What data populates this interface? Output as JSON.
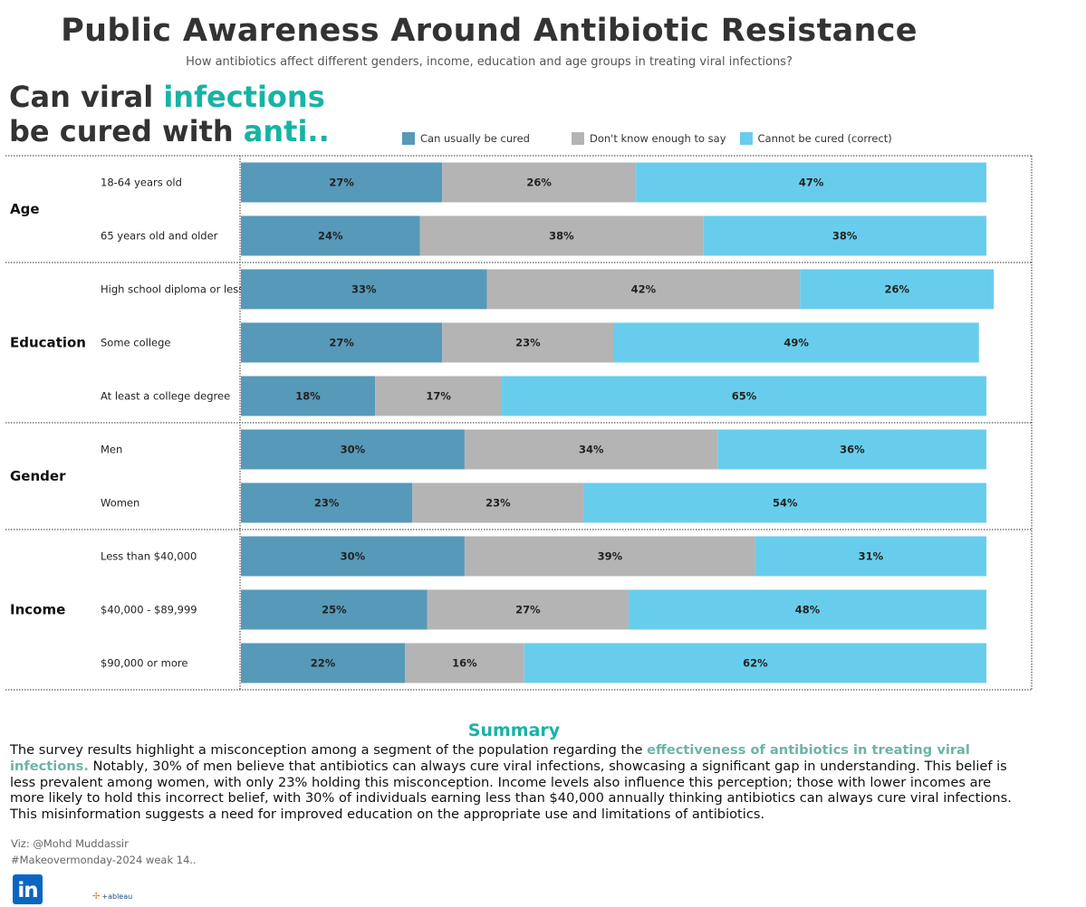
{
  "header": {
    "title": "Public Awareness Around Antibiotic Resistance",
    "subtitle": "How antibiotics affect different genders, income, education and age groups in treating viral infections?",
    "question_part1": "Can viral ",
    "question_hl1": "infections",
    "question_part2": "be cured with ",
    "question_hl2": "anti.."
  },
  "legend": {
    "items": [
      "Can usually be cured",
      "Don't know enough to say",
      "Cannot be cured (correct)"
    ]
  },
  "colors": {
    "cured": "#5799b8",
    "dont_know": "#b4b4b4",
    "cannot": "#68cdec",
    "accent": "#17b3a5"
  },
  "chart_data": {
    "type": "bar",
    "orientation": "horizontal",
    "stacked": true,
    "series": [
      {
        "name": "Can usually be cured",
        "color": "#5799b8"
      },
      {
        "name": "Don't know enough to say",
        "color": "#b4b4b4"
      },
      {
        "name": "Cannot be cured (correct)",
        "color": "#68cdec"
      }
    ],
    "groups": [
      {
        "name": "Age",
        "rows": [
          {
            "label": "18-64 years old",
            "values": [
              27,
              26,
              47
            ]
          },
          {
            "label": "65 years old and older",
            "values": [
              24,
              38,
              38
            ]
          }
        ]
      },
      {
        "name": "Education",
        "rows": [
          {
            "label": "High school diploma or less",
            "values": [
              33,
              42,
              26
            ]
          },
          {
            "label": "Some college",
            "values": [
              27,
              23,
              49
            ]
          },
          {
            "label": "At least a college degree",
            "values": [
              18,
              17,
              65
            ]
          }
        ]
      },
      {
        "name": "Gender",
        "rows": [
          {
            "label": "Men",
            "values": [
              30,
              34,
              36
            ]
          },
          {
            "label": "Women",
            "values": [
              23,
              23,
              54
            ]
          }
        ]
      },
      {
        "name": "Income",
        "rows": [
          {
            "label": "Less than $40,000",
            "values": [
              30,
              39,
              31
            ]
          },
          {
            "label": "$40,000 - $89,999",
            "values": [
              25,
              27,
              48
            ]
          },
          {
            "label": "$90,000 or more",
            "values": [
              22,
              16,
              62
            ]
          }
        ]
      }
    ],
    "value_suffix": "%"
  },
  "summary": {
    "title": "Summary",
    "text_before": "The survey results highlight a misconception among a segment of the population regarding the ",
    "highlight": "effectiveness of antibiotics in treating viral infections.",
    "text_after": " Notably, 30% of men believe that antibiotics can always cure viral infections, showcasing a significant gap in understanding. This belief is less prevalent among women, with only 23% holding this misconception. Income levels also influence this perception; those with lower incomes are more likely to hold this incorrect belief, with 30% of individuals earning less than $40,000 annually thinking antibiotics can always cure viral infections. This misinformation suggests a need for improved education on the appropriate use and limitations of antibiotics."
  },
  "footer": {
    "credit": "Viz: @Mohd Muddassir",
    "hashtag": "#Makeovermonday-2024 weak 14..",
    "linkedin_text": "in",
    "tableau_text": "+ableau"
  }
}
